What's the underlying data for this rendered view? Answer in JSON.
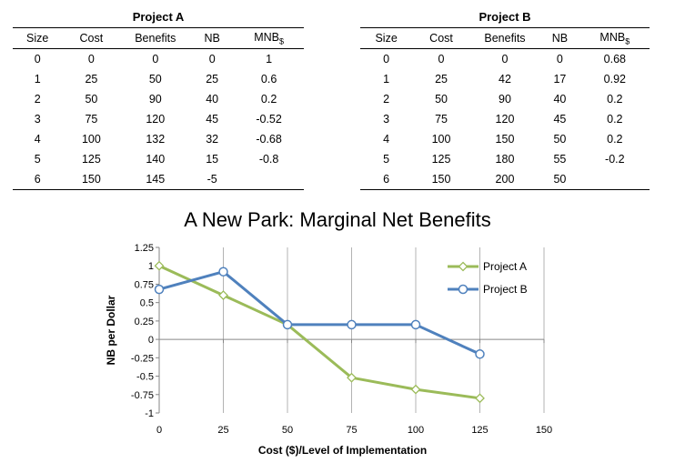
{
  "tableA": {
    "title": "Project A",
    "headers": [
      "Size",
      "Cost",
      "Benefits",
      "NB",
      "MNB$"
    ],
    "rows": [
      [
        "0",
        "0",
        "0",
        "0",
        "1"
      ],
      [
        "1",
        "25",
        "50",
        "25",
        "0.6"
      ],
      [
        "2",
        "50",
        "90",
        "40",
        "0.2"
      ],
      [
        "3",
        "75",
        "120",
        "45",
        "-0.52"
      ],
      [
        "4",
        "100",
        "132",
        "32",
        "-0.68"
      ],
      [
        "5",
        "125",
        "140",
        "15",
        "-0.8"
      ],
      [
        "6",
        "150",
        "145",
        "-5",
        ""
      ]
    ]
  },
  "tableB": {
    "title": "Project B",
    "headers": [
      "Size",
      "Cost",
      "Benefits",
      "NB",
      "MNB$"
    ],
    "rows": [
      [
        "0",
        "0",
        "0",
        "0",
        "0.68"
      ],
      [
        "1",
        "25",
        "42",
        "17",
        "0.92"
      ],
      [
        "2",
        "50",
        "90",
        "40",
        "0.2"
      ],
      [
        "3",
        "75",
        "120",
        "45",
        "0.2"
      ],
      [
        "4",
        "100",
        "150",
        "50",
        "0.2"
      ],
      [
        "5",
        "125",
        "180",
        "55",
        "-0.2"
      ],
      [
        "6",
        "150",
        "200",
        "50",
        ""
      ]
    ]
  },
  "chart_data": {
    "type": "line",
    "title": "A New Park: Marginal Net Benefits",
    "xlabel": "Cost ($)/Level of Implementation",
    "ylabel": "NB per Dollar",
    "xlim": [
      0,
      150
    ],
    "ylim": [
      -1,
      1.25
    ],
    "xticks": [
      0,
      25,
      50,
      75,
      100,
      125,
      150
    ],
    "yticks": [
      1.25,
      1,
      0.75,
      0.5,
      0.25,
      0,
      -0.25,
      -0.5,
      -0.75,
      -1
    ],
    "ytick_labels": [
      "1.25",
      "1",
      "0.75",
      "0.5",
      "0.25",
      "0",
      "-0.25",
      "-0.5",
      "-0.75",
      "-1"
    ],
    "grid": "vertical",
    "legend_position": "top-right",
    "series": [
      {
        "name": "Project A",
        "color": "#9bbb59",
        "marker": "diamond",
        "x": [
          0,
          25,
          50,
          75,
          100,
          125
        ],
        "y": [
          1,
          0.6,
          0.2,
          -0.52,
          -0.68,
          -0.8
        ]
      },
      {
        "name": "Project B",
        "color": "#4f81bd",
        "marker": "circle",
        "x": [
          0,
          25,
          50,
          75,
          100,
          125
        ],
        "y": [
          0.68,
          0.92,
          0.2,
          0.2,
          0.2,
          -0.2
        ]
      }
    ]
  }
}
